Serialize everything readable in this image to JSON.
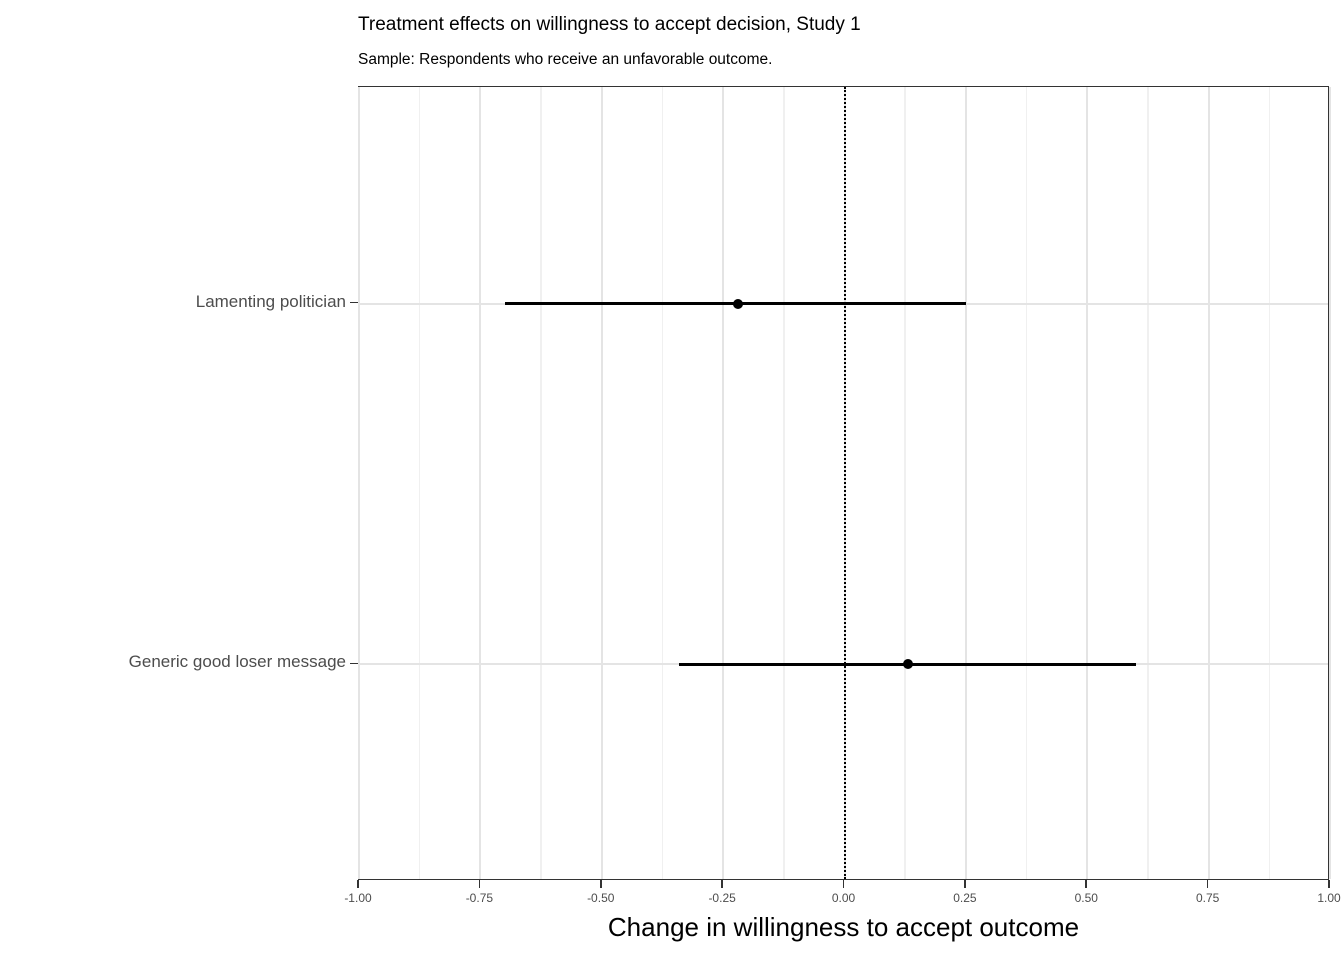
{
  "chart_data": {
    "type": "scatter",
    "subtype": "coefficient-plot-with-horizontal-error-bars",
    "title": "Treatment effects on willingness to accept decision, Study 1",
    "subtitle": "Sample: Respondents who receive an unfavorable outcome.",
    "xlabel": "Change in willingness to accept outcome",
    "ylabel": "",
    "xlim": [
      -1.0,
      1.0
    ],
    "x_tick_values": [
      -1.0,
      -0.75,
      -0.5,
      -0.25,
      0.0,
      0.25,
      0.5,
      0.75,
      1.0
    ],
    "x_tick_labels": [
      "-1.00",
      "-0.75",
      "-0.50",
      "-0.25",
      "0.00",
      "0.25",
      "0.50",
      "0.75",
      "1.00"
    ],
    "categories_top_to_bottom": [
      "Lamenting politician",
      "Generic good loser message"
    ],
    "series": [
      {
        "name": "treatment-effects",
        "points": [
          {
            "label": "Lamenting politician",
            "estimate": -0.22,
            "ci_lower": -0.7,
            "ci_upper": 0.25
          },
          {
            "label": "Generic good loser message",
            "estimate": 0.13,
            "ci_lower": -0.34,
            "ci_upper": 0.6
          }
        ]
      }
    ],
    "reference_line": {
      "x": 0.0,
      "style": "dotted",
      "color": "#000000"
    },
    "grid": "on",
    "minor_grid": true,
    "legend": "none"
  },
  "colors": {
    "background": "#ffffff",
    "panel_border": "#333333",
    "grid_major": "#e4e4e4",
    "grid_minor": "#f0f0f0",
    "axis_text": "#4d4d4d",
    "title_text": "#000000",
    "data": "#000000"
  }
}
